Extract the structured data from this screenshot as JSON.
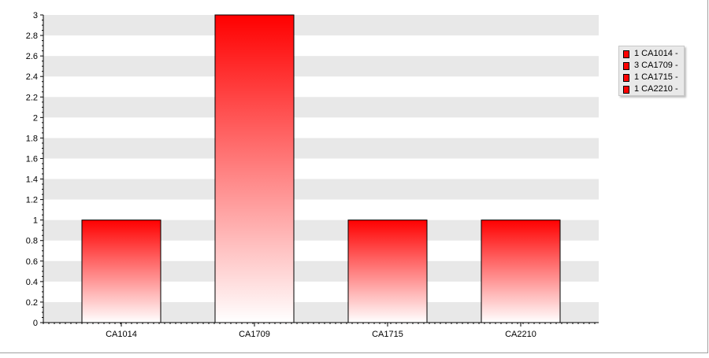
{
  "chart_data": {
    "type": "bar",
    "categories": [
      "CA1014",
      "CA1709",
      "CA1715",
      "CA2210"
    ],
    "values": [
      1,
      3,
      1,
      1
    ],
    "ylim": [
      0,
      3
    ],
    "yticks": [
      "0",
      "0.2",
      "0.4",
      "0.6",
      "0.8",
      "1",
      "1.2",
      "1.4",
      "1.6",
      "1.8",
      "2",
      "2.2",
      "2.4",
      "2.6",
      "2.8",
      "3"
    ],
    "title": "",
    "xlabel": "",
    "ylabel": "",
    "grid": "alternating horizontal bands",
    "legend_placement": "right",
    "legend": [
      "1 CA1014 -",
      "3 CA1709 -",
      "1 CA1715 -",
      "1 CA2210 -"
    ],
    "colors": {
      "bar_top": "#ff0000",
      "bar_bottom": "#ffffff",
      "band": "#e8e8e8",
      "bar_outline": "#000000"
    }
  }
}
